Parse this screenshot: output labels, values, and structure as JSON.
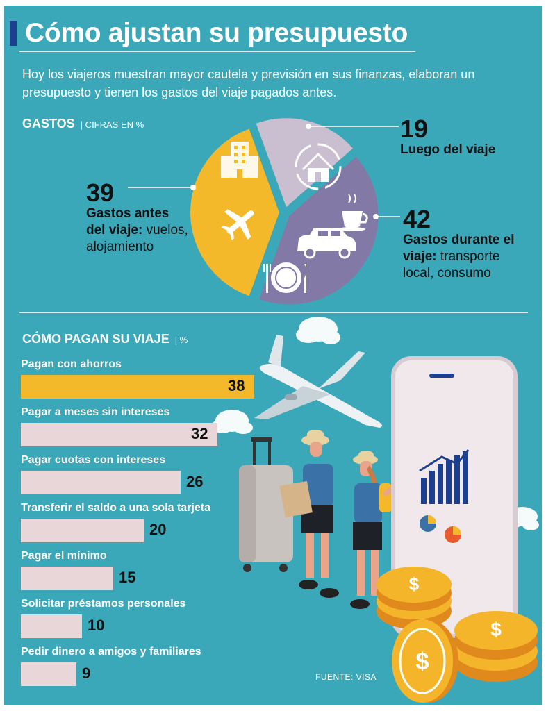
{
  "title": "Cómo ajustan su presupuesto",
  "subtitle": "Hoy los viajeros muestran mayor cautela y previsión en sus finanzas, elaboran un presupuesto y tienen los gastos del viaje pagados antes.",
  "gastos": {
    "heading": "GASTOS",
    "heading_unit": "| CIFRAS EN %",
    "antes": {
      "value": "39",
      "label_bold": "Gastos antes del viaje:",
      "label_rest": "vuelos, alojamiento"
    },
    "luego": {
      "value": "19",
      "label_bold": "Luego del viaje",
      "label_rest": ""
    },
    "durante": {
      "value": "42",
      "label_bold": "Gastos durante el viaje:",
      "label_rest": "transporte local, consumo"
    }
  },
  "pagos": {
    "heading": "CÓMO PAGAN SU VIAJE",
    "heading_unit": "| %"
  },
  "source": "FUENTE: VISA",
  "colors": {
    "background": "#3ba8ba",
    "antes": "#f4b82b",
    "luego": "#c9bfd0",
    "durante": "#8279a6",
    "bar": "#e8d6d9",
    "bar_highlight": "#f4b82b"
  },
  "icons": [
    "building-icon",
    "airplane-icon",
    "house-icon",
    "cup-icon",
    "car-icon",
    "plate-icon"
  ],
  "chart_data": [
    {
      "type": "pie",
      "title": "GASTOS",
      "subtitle": "CIFRAS EN %",
      "slices": [
        {
          "name": "Gastos antes del viaje: vuelos, alojamiento",
          "value": 39,
          "color": "#f4b82b"
        },
        {
          "name": "Luego del viaje",
          "value": 19,
          "color": "#c9bfd0"
        },
        {
          "name": "Gastos durante el viaje: transporte local, consumo",
          "value": 42,
          "color": "#8279a6"
        }
      ]
    },
    {
      "type": "bar",
      "orientation": "horizontal",
      "title": "CÓMO PAGAN SU VIAJE",
      "subtitle": "%",
      "categories": [
        "Pagan con ahorros",
        "Pagar a meses sin intereses",
        "Pagar cuotas con intereses",
        "Transferir el saldo a una sola tarjeta",
        "Pagar el mínimo",
        "Solicitar préstamos personales",
        "Pedir dinero a amigos y familiares"
      ],
      "values": [
        38,
        32,
        26,
        20,
        15,
        10,
        9
      ],
      "highlight": "Pagan con ahorros",
      "xlim": [
        0,
        38
      ]
    }
  ]
}
